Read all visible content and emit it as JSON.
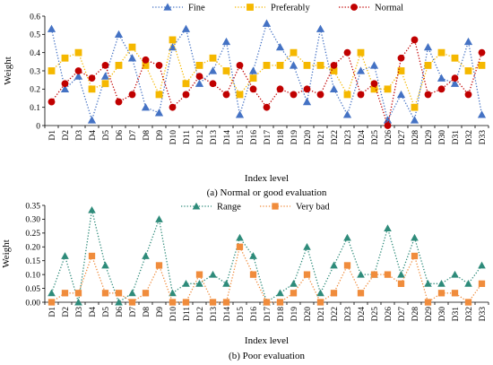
{
  "chart_data": [
    {
      "type": "line",
      "caption": "(a) Normal or good evaluation",
      "xlabel": "Index level",
      "ylabel": "Weight",
      "ylim": [
        0,
        0.6
      ],
      "yticks": [
        "0",
        "0.1",
        "0.2",
        "0.3",
        "0.4",
        "0.5",
        "0.6"
      ],
      "legend_position": "top-center",
      "grid": false,
      "categories": [
        "D1",
        "D2",
        "D3",
        "D4",
        "D5",
        "D6",
        "D7",
        "D8",
        "D9",
        "D10",
        "D11",
        "D12",
        "D13",
        "D14",
        "D15",
        "D16",
        "D17",
        "D18",
        "D19",
        "D20",
        "D21",
        "D22",
        "D23",
        "D24",
        "D25",
        "D26",
        "D27",
        "D28",
        "D29",
        "D30",
        "D31",
        "D32",
        "D33"
      ],
      "series": [
        {
          "name": "Fine",
          "color": "#4472C4",
          "marker": "triangle",
          "values": [
            0.53,
            0.2,
            0.27,
            0.03,
            0.27,
            0.5,
            0.37,
            0.1,
            0.07,
            0.43,
            0.53,
            0.23,
            0.3,
            0.46,
            0.06,
            0.3,
            0.56,
            0.43,
            0.33,
            0.13,
            0.53,
            0.2,
            0.06,
            0.3,
            0.33,
            0.03,
            0.17,
            0.03,
            0.43,
            0.26,
            0.23,
            0.46,
            0.06
          ]
        },
        {
          "name": "Preferably",
          "color": "#F5B800",
          "marker": "square",
          "values": [
            0.3,
            0.37,
            0.4,
            0.2,
            0.23,
            0.33,
            0.43,
            0.33,
            0.17,
            0.47,
            0.23,
            0.33,
            0.37,
            0.3,
            0.17,
            0.26,
            0.33,
            0.33,
            0.4,
            0.33,
            0.33,
            0.3,
            0.17,
            0.4,
            0.2,
            0.2,
            0.3,
            0.1,
            0.33,
            0.4,
            0.37,
            0.3,
            0.33
          ]
        },
        {
          "name": "Normal",
          "color": "#C00000",
          "marker": "circle",
          "values": [
            0.13,
            0.23,
            0.3,
            0.26,
            0.33,
            0.13,
            0.17,
            0.36,
            0.33,
            0.1,
            0.17,
            0.27,
            0.23,
            0.17,
            0.33,
            0.2,
            0.1,
            0.2,
            0.17,
            0.2,
            0.17,
            0.33,
            0.4,
            0.17,
            0.23,
            0.0,
            0.37,
            0.47,
            0.17,
            0.2,
            0.26,
            0.17,
            0.4
          ]
        }
      ]
    },
    {
      "type": "line",
      "caption": "(b) Poor evaluation",
      "xlabel": "Index level",
      "ylabel": "Weight",
      "ylim": [
        0,
        0.35
      ],
      "yticks": [
        "0.00",
        "0.05",
        "0.10",
        "0.15",
        "0.20",
        "0.25",
        "0.30",
        "0.35"
      ],
      "legend_position": "top-center",
      "grid": false,
      "categories": [
        "D1",
        "D2",
        "D3",
        "D4",
        "D5",
        "D6",
        "D7",
        "D8",
        "D9",
        "D10",
        "D11",
        "D12",
        "D13",
        "D14",
        "D15",
        "D16",
        "D17",
        "D18",
        "D19",
        "D20",
        "D21",
        "D22",
        "D23",
        "D24",
        "D25",
        "D26",
        "D27",
        "D28",
        "D29",
        "D30",
        "D31",
        "D32",
        "D33"
      ],
      "series": [
        {
          "name": "Range",
          "color": "#2E8B7A",
          "marker": "triangle",
          "values": [
            0.033,
            0.167,
            0.0,
            0.333,
            0.133,
            0.0,
            0.033,
            0.167,
            0.3,
            0.033,
            0.067,
            0.067,
            0.1,
            0.067,
            0.233,
            0.167,
            0.0,
            0.033,
            0.067,
            0.2,
            0.033,
            0.133,
            0.233,
            0.1,
            0.1,
            0.267,
            0.1,
            0.233,
            0.067,
            0.067,
            0.1,
            0.067,
            0.133
          ]
        },
        {
          "name": "Very bad",
          "color": "#F08C3C",
          "marker": "square",
          "values": [
            0.0,
            0.033,
            0.033,
            0.167,
            0.033,
            0.033,
            0.0,
            0.033,
            0.133,
            0.0,
            0.0,
            0.1,
            0.0,
            0.0,
            0.2,
            0.1,
            0.0,
            0.0,
            0.033,
            0.1,
            0.0,
            0.033,
            0.133,
            0.033,
            0.1,
            0.1,
            0.067,
            0.167,
            0.0,
            0.033,
            0.033,
            0.0,
            0.067
          ]
        }
      ]
    }
  ]
}
